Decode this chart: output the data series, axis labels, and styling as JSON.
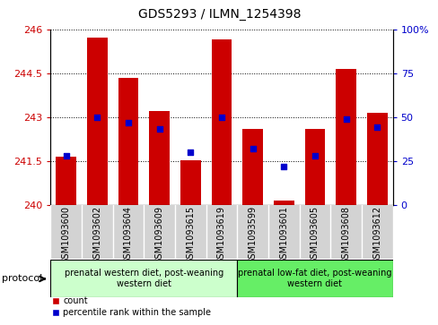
{
  "title": "GDS5293 / ILMN_1254398",
  "samples": [
    "GSM1093600",
    "GSM1093602",
    "GSM1093604",
    "GSM1093609",
    "GSM1093615",
    "GSM1093619",
    "GSM1093599",
    "GSM1093601",
    "GSM1093605",
    "GSM1093608",
    "GSM1093612"
  ],
  "count_values": [
    241.65,
    245.7,
    244.35,
    243.2,
    241.52,
    245.65,
    242.6,
    240.15,
    242.6,
    244.65,
    243.15
  ],
  "percentile_values": [
    28,
    50,
    47,
    43,
    30,
    50,
    32,
    22,
    28,
    49,
    44
  ],
  "ylim_left": [
    240,
    246
  ],
  "ylim_right": [
    0,
    100
  ],
  "yticks_left": [
    240,
    241.5,
    243,
    244.5,
    246
  ],
  "yticks_right": [
    0,
    25,
    50,
    75,
    100
  ],
  "bar_color": "#cc0000",
  "dot_color": "#0000cc",
  "group1_indices": [
    0,
    1,
    2,
    3,
    4,
    5
  ],
  "group2_indices": [
    6,
    7,
    8,
    9,
    10
  ],
  "group1_label": "prenatal western diet, post-weaning\nwestern diet",
  "group2_label": "prenatal low-fat diet, post-weaning\nwestern diet",
  "group1_color": "#ccffcc",
  "group2_color": "#66ee66",
  "protocol_label": "protocol",
  "legend_count": "count",
  "legend_percentile": "percentile rank within the sample",
  "base_value": 240,
  "title_fontsize": 10,
  "tick_fontsize": 8,
  "label_fontsize": 7,
  "legend_fontsize": 7,
  "protocol_fontsize": 8
}
